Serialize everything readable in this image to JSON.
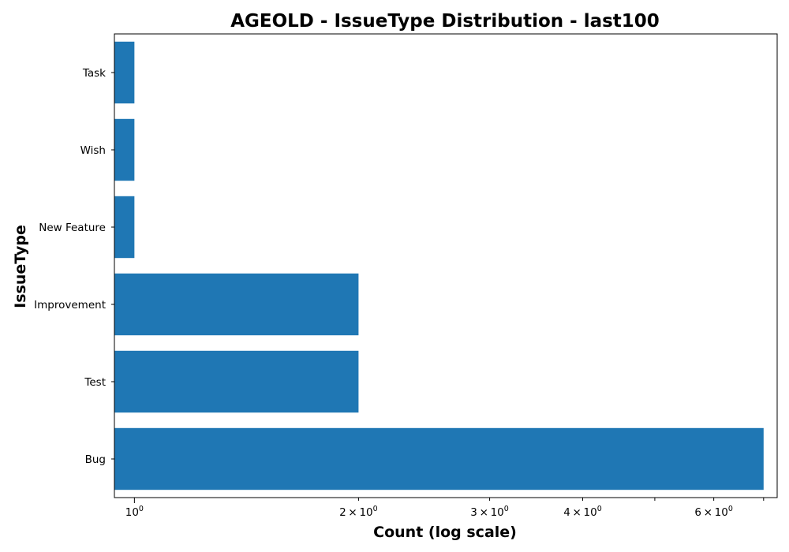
{
  "chart_data": {
    "type": "bar",
    "orientation": "horizontal",
    "title": "AGEOLD - IssueType Distribution - last100",
    "xlabel": "Count (log scale)",
    "ylabel": "IssueType",
    "x_scale": "log",
    "xlim": [
      0.94,
      7.3
    ],
    "categories": [
      "Bug",
      "Test",
      "Improvement",
      "New Feature",
      "Wish",
      "Task"
    ],
    "values": [
      7,
      2,
      2,
      1,
      1,
      1
    ],
    "x_major_ticks": [
      {
        "value": 1,
        "base": "10",
        "exp": "0"
      }
    ],
    "x_minor_ticks": [
      {
        "value": 2,
        "coef": "2",
        "base": "10",
        "exp": "0"
      },
      {
        "value": 3,
        "coef": "3",
        "base": "10",
        "exp": "0"
      },
      {
        "value": 4,
        "coef": "4",
        "base": "10",
        "exp": "0"
      },
      {
        "value": 5
      },
      {
        "value": 6,
        "coef": "6",
        "base": "10",
        "exp": "0"
      },
      {
        "value": 7
      }
    ],
    "bar_color": "#1f77b4",
    "grid": false,
    "legend": "none"
  }
}
